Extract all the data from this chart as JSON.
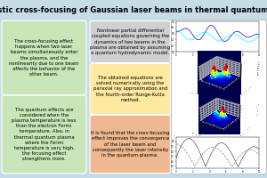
{
  "title": "Relativistic cross-focusing of Gaussian laser beams in thermal quantum plasma",
  "title_bg": "#a8c8dc",
  "poster_bg": "#c8dce8",
  "box1_bg": "#c8e6b8",
  "box2_bg": "#c8e6b8",
  "box3_bg": "#d0d0d0",
  "box4_bg": "#ffe8a0",
  "box5_bg": "#f0b890",
  "box1_text": "The cross-focusing effect\nhappens when two laser\nbeams simultaneously enter\nthe plasma, and the\nnonlinearity due to one beam\naffects the behavior of the\nother beam.",
  "box2_text": "The quantum effects are\nconsidered when the\nplasma temperature is less\nthan the electron Fermi\ntemperature. Also, in\nthermal quantum plasma\nwhere the Fermi\ntemperature is very high,\nthe focusing effect\nstrengthens more.",
  "box3_text": "Nonlinear partial differential\ncoupled equations governing the\ndynamics of two beams in the\nplasma are obtained by assuming\na quantum hydrodynamic model.",
  "box4_text": "The obtained equations are\nsolved numerically using the\nparaxial ray approximation and\nthe fourth-order Runge-Kutta\nmethod.",
  "box5_text": "It is found that the cross-focusing\neffect improves the convergence\nof the laser beam and\nconsequently the laser intensity\nin the quantum plasma.",
  "font_size": 3.8,
  "title_font_size": 6.0
}
